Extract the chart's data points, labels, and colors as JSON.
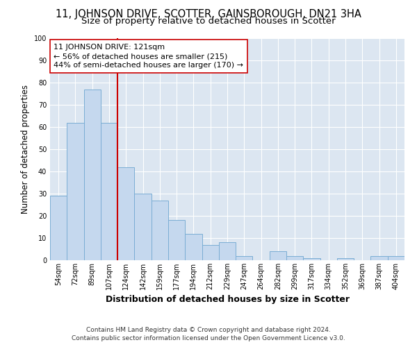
{
  "title": "11, JOHNSON DRIVE, SCOTTER, GAINSBOROUGH, DN21 3HA",
  "subtitle": "Size of property relative to detached houses in Scotter",
  "xlabel": "Distribution of detached houses by size in Scotter",
  "ylabel": "Number of detached properties",
  "bin_labels": [
    "54sqm",
    "72sqm",
    "89sqm",
    "107sqm",
    "124sqm",
    "142sqm",
    "159sqm",
    "177sqm",
    "194sqm",
    "212sqm",
    "229sqm",
    "247sqm",
    "264sqm",
    "282sqm",
    "299sqm",
    "317sqm",
    "334sqm",
    "352sqm",
    "369sqm",
    "387sqm",
    "404sqm"
  ],
  "bar_values": [
    29,
    62,
    77,
    62,
    42,
    30,
    27,
    18,
    12,
    7,
    8,
    2,
    0,
    4,
    2,
    1,
    0,
    1,
    0,
    2,
    2
  ],
  "bar_color": "#c5d8ee",
  "bar_edge_color": "#7aadd4",
  "vline_x_index": 4,
  "vline_color": "#cc0000",
  "annotation_text": "11 JOHNSON DRIVE: 121sqm\n← 56% of detached houses are smaller (215)\n44% of semi-detached houses are larger (170) →",
  "annotation_box_color": "#ffffff",
  "annotation_box_edge": "#cc0000",
  "ylim": [
    0,
    100
  ],
  "yticks": [
    0,
    10,
    20,
    30,
    40,
    50,
    60,
    70,
    80,
    90,
    100
  ],
  "fig_bg_color": "#ffffff",
  "plot_bg_color": "#dce6f1",
  "footer_text": "Contains HM Land Registry data © Crown copyright and database right 2024.\nContains public sector information licensed under the Open Government Licence v3.0.",
  "title_fontsize": 10.5,
  "subtitle_fontsize": 9.5,
  "xlabel_fontsize": 9,
  "ylabel_fontsize": 8.5,
  "tick_fontsize": 7,
  "annotation_fontsize": 8,
  "footer_fontsize": 6.5
}
